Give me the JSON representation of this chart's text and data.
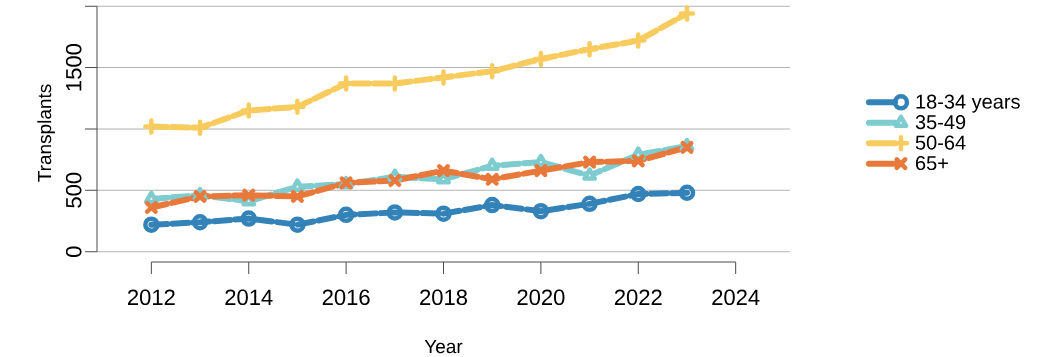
{
  "chart_data": {
    "type": "line",
    "xlabel": "Year",
    "ylabel": "Transplants",
    "x": [
      2012,
      2013,
      2014,
      2015,
      2016,
      2017,
      2018,
      2019,
      2020,
      2021,
      2022,
      2023
    ],
    "series": [
      {
        "name": "18-34 years",
        "color": "#3382b8",
        "marker": "circle",
        "values": [
          220,
          240,
          270,
          220,
          300,
          320,
          310,
          380,
          330,
          390,
          470,
          480
        ]
      },
      {
        "name": "35-49",
        "color": "#7ecbd0",
        "marker": "triangle",
        "values": [
          430,
          460,
          410,
          530,
          550,
          610,
          590,
          700,
          730,
          620,
          790,
          860
        ]
      },
      {
        "name": "50-64",
        "color": "#f8cb5e",
        "marker": "cross",
        "values": [
          1020,
          1010,
          1150,
          1180,
          1370,
          1370,
          1420,
          1470,
          1570,
          1650,
          1720,
          1940
        ]
      },
      {
        "name": "65+",
        "color": "#e8793a",
        "marker": "x",
        "values": [
          360,
          450,
          460,
          450,
          560,
          580,
          660,
          590,
          660,
          730,
          740,
          850
        ]
      }
    ],
    "line_style": "dashed",
    "grid": "y",
    "legend": "right",
    "xlim": [
      2012,
      2024
    ],
    "xticks": [
      2012,
      2014,
      2016,
      2018,
      2020,
      2022,
      2024
    ],
    "ylim": [
      0,
      2000
    ],
    "yticks": [
      0,
      500,
      {
        "value": 1000,
        "label": null
      },
      1500,
      {
        "value": 2000,
        "label": null
      }
    ]
  }
}
